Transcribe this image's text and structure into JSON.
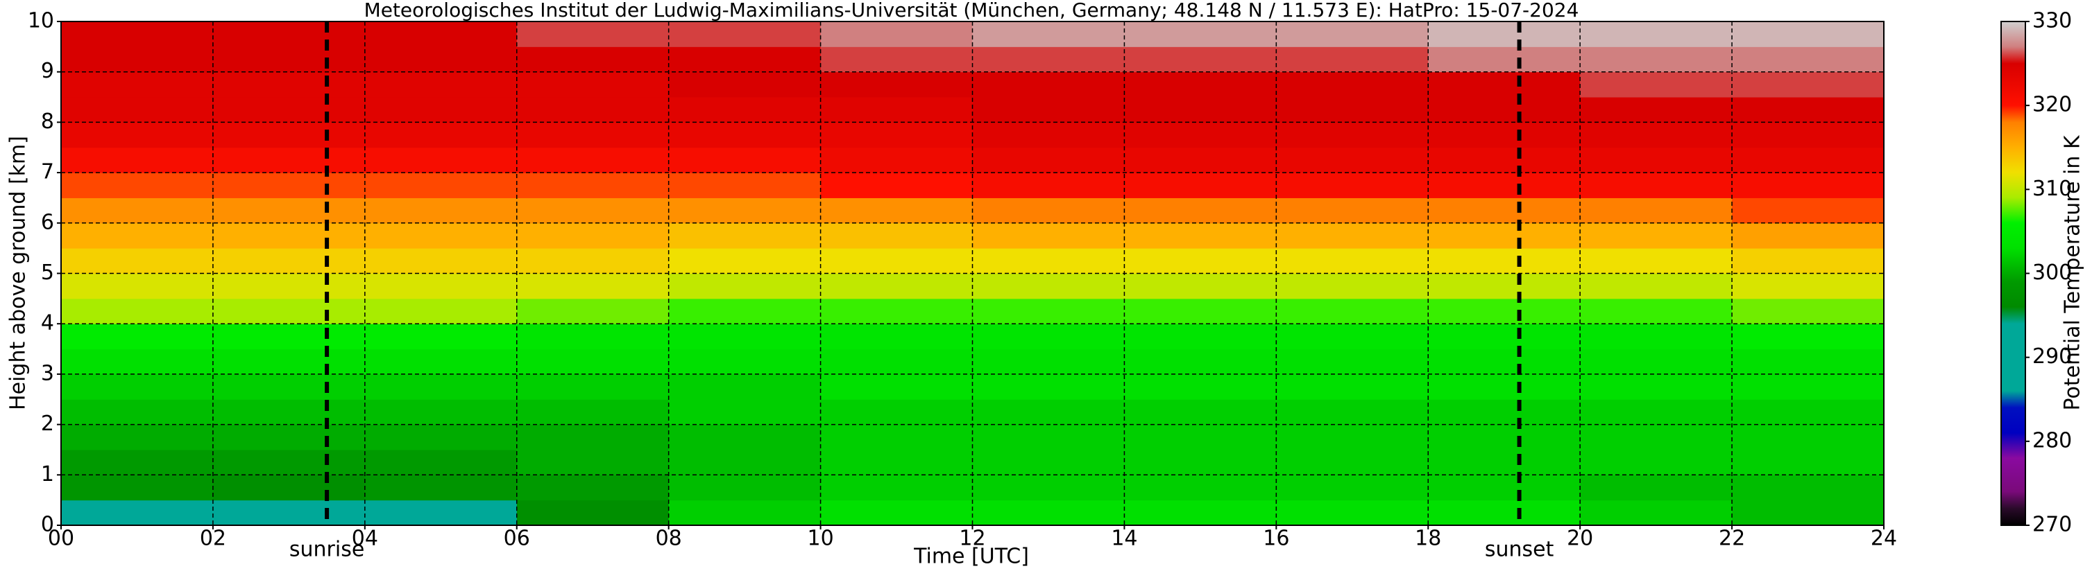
{
  "chart_data": {
    "type": "heatmap",
    "title": "Meteorologisches Institut der Ludwig-Maximilians-Universität (München, Germany; 48.148 N / 11.573 E):    HatPro: 15-07-2024",
    "x_label": "Time [UTC]",
    "y_label": "Height above ground [km]",
    "colorbar_label": "Potential Temperature in K",
    "xbins": [
      0,
      2,
      4,
      6,
      8,
      10,
      12,
      14,
      16,
      18,
      20,
      22,
      24
    ],
    "ybins": [
      0,
      0.5,
      1,
      1.5,
      2,
      2.5,
      3,
      3.5,
      4,
      4.5,
      5,
      5.5,
      6,
      6.5,
      7,
      7.5,
      8,
      8.5,
      9,
      9.5,
      10
    ],
    "z": [
      [
        294,
        293,
        294,
        297,
        302,
        303,
        303,
        303,
        303,
        303,
        302,
        301
      ],
      [
        298,
        297,
        298,
        299,
        301,
        302,
        302,
        302,
        302,
        302,
        301,
        301
      ],
      [
        299,
        299,
        299,
        300,
        301,
        302,
        302,
        302,
        302,
        302,
        302,
        302
      ],
      [
        300,
        300,
        300,
        300,
        301,
        302,
        302,
        302,
        302,
        302,
        302,
        302
      ],
      [
        301,
        301,
        301,
        301,
        302,
        302,
        302,
        302,
        302,
        302,
        302,
        302
      ],
      [
        302,
        302,
        302,
        302,
        302,
        303,
        303,
        303,
        303,
        303,
        303,
        303
      ],
      [
        303,
        303,
        303,
        303,
        303,
        303,
        303,
        303,
        303,
        303,
        303,
        303
      ],
      [
        305,
        305,
        305,
        304,
        304,
        304,
        304,
        304,
        304,
        304,
        304,
        305
      ],
      [
        309,
        309,
        309,
        308,
        307,
        307,
        307,
        307,
        307,
        307,
        307,
        308
      ],
      [
        311,
        311,
        311,
        311,
        310,
        310,
        310,
        310,
        310,
        310,
        310,
        311
      ],
      [
        313,
        313,
        313,
        313,
        312,
        312,
        312,
        312,
        312,
        312,
        312,
        313
      ],
      [
        315,
        315,
        315,
        315,
        314,
        314,
        315,
        315,
        315,
        315,
        315,
        316
      ],
      [
        317,
        317,
        317,
        317,
        317,
        317,
        318,
        318,
        318,
        318,
        318,
        319
      ],
      [
        319,
        319,
        319,
        319,
        319,
        320,
        321,
        321,
        321,
        321,
        321,
        321
      ],
      [
        321,
        321,
        321,
        321,
        321,
        322,
        323,
        323,
        323,
        323,
        323,
        323
      ],
      [
        323,
        323,
        323,
        323,
        323,
        323,
        324,
        324,
        324,
        324,
        324,
        324
      ],
      [
        324,
        324,
        324,
        324,
        324,
        324,
        325,
        325,
        325,
        325,
        325,
        325
      ],
      [
        324,
        324,
        324,
        324,
        325,
        325,
        325,
        325,
        325,
        325,
        326,
        326
      ],
      [
        325,
        325,
        325,
        325,
        325,
        326,
        326,
        326,
        326,
        327,
        327,
        327
      ],
      [
        325,
        325,
        325,
        326,
        326,
        327,
        328,
        328,
        328,
        329,
        329,
        329
      ]
    ],
    "colormap": {
      "values": [
        270,
        272,
        274,
        278,
        281,
        284,
        286,
        294,
        296,
        299,
        303,
        306,
        309,
        312,
        315,
        318,
        320,
        325,
        327,
        330
      ],
      "colors": [
        "#000000",
        "#2a0a2a",
        "#7a0a7a",
        "#8a0aa0",
        "#0000c0",
        "#0010c0",
        "#00a898",
        "#00a898",
        "#008a00",
        "#009a00",
        "#00e000",
        "#00f000",
        "#a8ec00",
        "#f0e000",
        "#ffb000",
        "#ff8000",
        "#ff1000",
        "#d80000",
        "#d08080",
        "#d0d0d0"
      ]
    },
    "xlim": [
      0,
      24
    ],
    "xticks": [
      {
        "value": 0,
        "label": "00"
      },
      {
        "value": 2,
        "label": "02"
      },
      {
        "value": 4,
        "label": "04"
      },
      {
        "value": 6,
        "label": "06"
      },
      {
        "value": 8,
        "label": "08"
      },
      {
        "value": 10,
        "label": "10"
      },
      {
        "value": 12,
        "label": "12"
      },
      {
        "value": 14,
        "label": "14"
      },
      {
        "value": 16,
        "label": "16"
      },
      {
        "value": 18,
        "label": "18"
      },
      {
        "value": 20,
        "label": "20"
      },
      {
        "value": 22,
        "label": "22"
      },
      {
        "value": 24,
        "label": "24"
      }
    ],
    "ylim": [
      0,
      10
    ],
    "yticks": [
      0,
      1,
      2,
      3,
      4,
      5,
      6,
      7,
      8,
      9,
      10
    ],
    "clim": [
      270,
      330
    ],
    "cticks": [
      270,
      280,
      290,
      300,
      310,
      320,
      330
    ],
    "grid": true,
    "annotations": [
      {
        "text": "sunrise",
        "x": 3.5
      },
      {
        "text": "sunset",
        "x": 19.2
      }
    ]
  }
}
